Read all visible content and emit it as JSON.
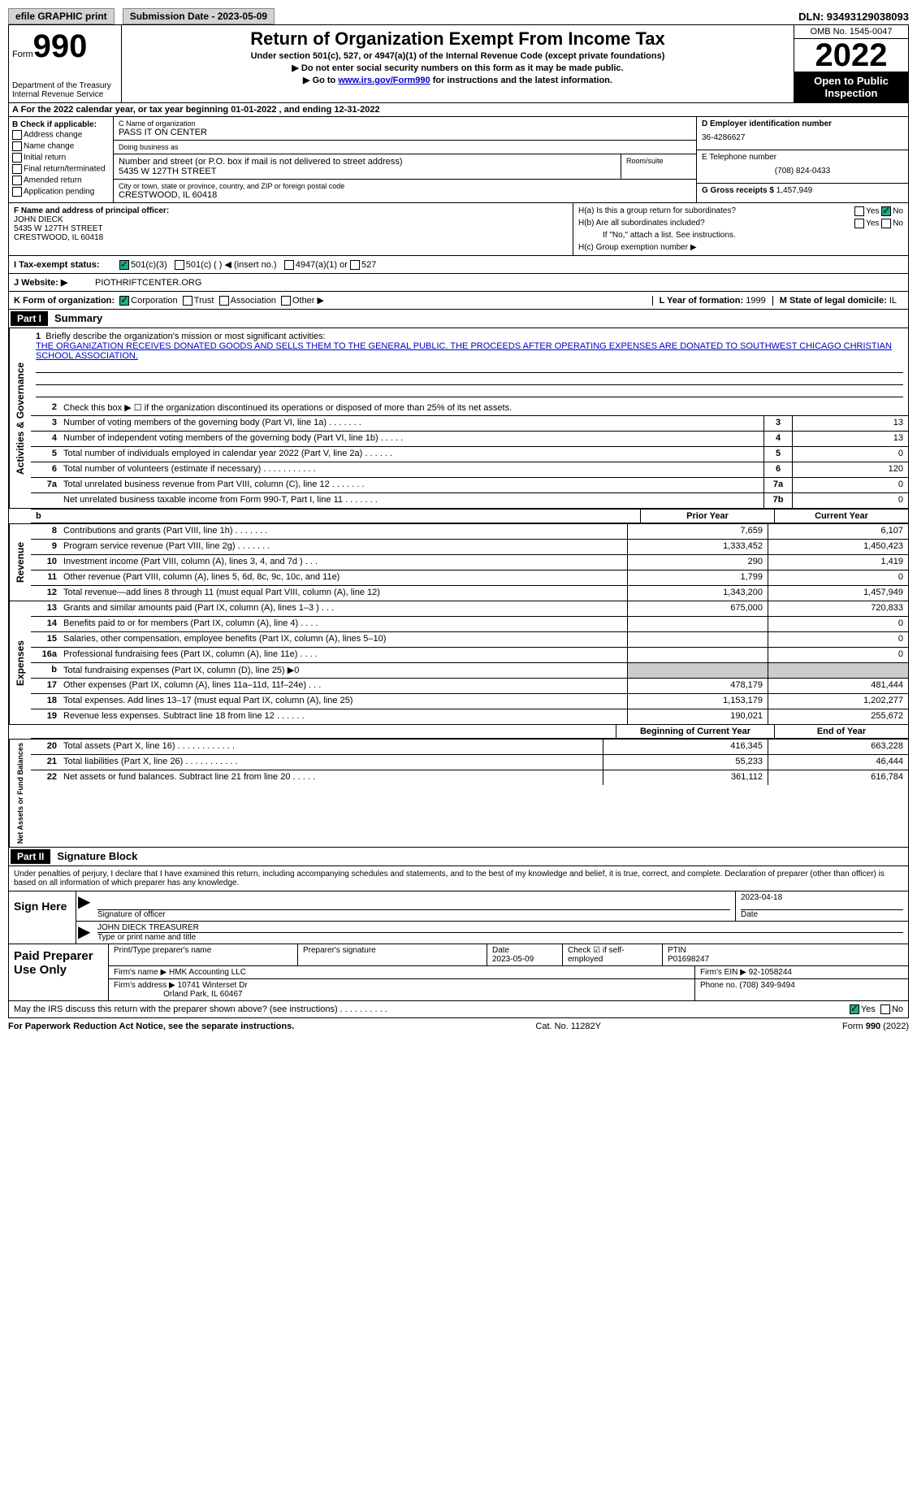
{
  "topbar": {
    "efile": "efile GRAPHIC print",
    "submission": "Submission Date - 2023-05-09",
    "dln": "DLN: 93493129038093"
  },
  "header": {
    "form_label": "Form",
    "form_num": "990",
    "dept": "Department of the Treasury",
    "irs": "Internal Revenue Service",
    "title": "Return of Organization Exempt From Income Tax",
    "sub1": "Under section 501(c), 527, or 4947(a)(1) of the Internal Revenue Code (except private foundations)",
    "sub2": "▶ Do not enter social security numbers on this form as it may be made public.",
    "sub3_pre": "▶ Go to ",
    "sub3_link": "www.irs.gov/Form990",
    "sub3_post": " for instructions and the latest information.",
    "omb": "OMB No. 1545-0047",
    "year": "2022",
    "open": "Open to Public Inspection"
  },
  "row_a": "A For the 2022 calendar year, or tax year beginning 01-01-2022    , and ending 12-31-2022",
  "col_b": {
    "label": "B Check if applicable:",
    "items": [
      "Address change",
      "Name change",
      "Initial return",
      "Final return/terminated",
      "Amended return",
      "Application pending"
    ]
  },
  "col_c": {
    "name_lab": "C Name of organization",
    "name": "PASS IT ON CENTER",
    "dba_lab": "Doing business as",
    "dba": "",
    "street_lab": "Number and street (or P.O. box if mail is not delivered to street address)",
    "room_lab": "Room/suite",
    "street": "5435 W 127TH STREET",
    "city_lab": "City or town, state or province, country, and ZIP or foreign postal code",
    "city": "CRESTWOOD, IL  60418"
  },
  "col_d": {
    "ein_lab": "D Employer identification number",
    "ein": "36-4286627",
    "tel_lab": "E Telephone number",
    "tel": "(708) 824-0433",
    "gross_lab": "G Gross receipts $",
    "gross": "1,457,949"
  },
  "fh": {
    "f_lab": "F Name and address of principal officer:",
    "f_name": "JOHN DIECK",
    "f_addr1": "5435 W 127TH STREET",
    "f_addr2": "CRESTWOOD, IL  60418",
    "ha": "H(a)  Is this a group return for subordinates?",
    "hb": "H(b)  Are all subordinates included?",
    "hb_note": "If \"No,\" attach a list. See instructions.",
    "hc": "H(c)  Group exemption number ▶",
    "yes": "Yes",
    "no": "No"
  },
  "row_i": {
    "label": "I    Tax-exempt status:",
    "o1": "501(c)(3)",
    "o2": "501(c) (  ) ◀ (insert no.)",
    "o3": "4947(a)(1) or",
    "o4": "527"
  },
  "row_j": {
    "label": "J   Website: ▶",
    "val": "PIOTHRIFTCENTER.ORG"
  },
  "row_k": {
    "label": "K Form of organization:",
    "o1": "Corporation",
    "o2": "Trust",
    "o3": "Association",
    "o4": "Other ▶",
    "l_lab": "L Year of formation:",
    "l_val": "1999",
    "m_lab": "M State of legal domicile:",
    "m_val": "IL"
  },
  "part1": {
    "num": "Part I",
    "title": "Summary"
  },
  "summary": {
    "q1": "Briefly describe the organization's mission or most significant activities:",
    "q1_text": "THE ORGANIZATION RECEIVES DONATED GOODS AND SELLS THEM TO THE GENERAL PUBLIC. THE PROCEEDS AFTER OPERATING EXPENSES ARE DONATED TO SOUTHWEST CHICAGO CHRISTIAN SCHOOL ASSOCIATION.",
    "q2": "Check this box ▶ ☐  if the organization discontinued its operations or disposed of more than 25% of its net assets.",
    "rows": [
      {
        "n": "3",
        "t": "Number of voting members of the governing body (Part VI, line 1a)   .    .    .    .    .    .    .",
        "b": "3",
        "v": "13"
      },
      {
        "n": "4",
        "t": "Number of independent voting members of the governing body (Part VI, line 1b)   .    .    .    .    .",
        "b": "4",
        "v": "13"
      },
      {
        "n": "5",
        "t": "Total number of individuals employed in calendar year 2022 (Part V, line 2a)   .    .    .    .    .    .",
        "b": "5",
        "v": "0"
      },
      {
        "n": "6",
        "t": "Total number of volunteers (estimate if necessary)   .    .    .    .    .    .    .    .    .    .    .",
        "b": "6",
        "v": "120"
      },
      {
        "n": "7a",
        "t": "Total unrelated business revenue from Part VIII, column (C), line 12   .    .    .    .    .    .    .",
        "b": "7a",
        "v": "0"
      },
      {
        "n": "",
        "t": "Net unrelated business taxable income from Form 990-T, Part I, line 11   .    .    .    .    .    .    .",
        "b": "7b",
        "v": "0"
      }
    ]
  },
  "prior_hdr": "Prior Year",
  "curr_hdr": "Current Year",
  "revenue": {
    "label": "Revenue",
    "rows": [
      {
        "n": "8",
        "t": "Contributions and grants (Part VIII, line 1h)   .    .    .    .    .    .    .",
        "p": "7,659",
        "c": "6,107"
      },
      {
        "n": "9",
        "t": "Program service revenue (Part VIII, line 2g)   .    .    .    .    .    .    .",
        "p": "1,333,452",
        "c": "1,450,423"
      },
      {
        "n": "10",
        "t": "Investment income (Part VIII, column (A), lines 3, 4, and 7d )   .    .    .",
        "p": "290",
        "c": "1,419"
      },
      {
        "n": "11",
        "t": "Other revenue (Part VIII, column (A), lines 5, 6d, 8c, 9c, 10c, and 11e)",
        "p": "1,799",
        "c": "0"
      },
      {
        "n": "12",
        "t": "Total revenue—add lines 8 through 11 (must equal Part VIII, column (A), line 12)",
        "p": "1,343,200",
        "c": "1,457,949"
      }
    ]
  },
  "expenses": {
    "label": "Expenses",
    "rows": [
      {
        "n": "13",
        "t": "Grants and similar amounts paid (Part IX, column (A), lines 1–3 )   .    .    .",
        "p": "675,000",
        "c": "720,833"
      },
      {
        "n": "14",
        "t": "Benefits paid to or for members (Part IX, column (A), line 4)   .    .    .    .",
        "p": "",
        "c": "0"
      },
      {
        "n": "15",
        "t": "Salaries, other compensation, employee benefits (Part IX, column (A), lines 5–10)",
        "p": "",
        "c": "0"
      },
      {
        "n": "16a",
        "t": "Professional fundraising fees (Part IX, column (A), line 11e)   .    .    .    .",
        "p": "",
        "c": "0"
      },
      {
        "n": "b",
        "t": "Total fundraising expenses (Part IX, column (D), line 25) ▶0",
        "p": "shade",
        "c": "shade"
      },
      {
        "n": "17",
        "t": "Other expenses (Part IX, column (A), lines 11a–11d, 11f–24e)   .    .    .",
        "p": "478,179",
        "c": "481,444"
      },
      {
        "n": "18",
        "t": "Total expenses. Add lines 13–17 (must equal Part IX, column (A), line 25)",
        "p": "1,153,179",
        "c": "1,202,277"
      },
      {
        "n": "19",
        "t": "Revenue less expenses. Subtract line 18 from line 12   .    .    .    .    .    .",
        "p": "190,021",
        "c": "255,672"
      }
    ]
  },
  "netassets": {
    "label": "Net Assets or Fund Balances",
    "hdr_p": "Beginning of Current Year",
    "hdr_c": "End of Year",
    "rows": [
      {
        "n": "20",
        "t": "Total assets (Part X, line 16)   .    .    .    .    .    .    .    .    .    .    .    .",
        "p": "416,345",
        "c": "663,228"
      },
      {
        "n": "21",
        "t": "Total liabilities (Part X, line 26)   .    .    .    .    .    .    .    .    .    .    .",
        "p": "55,233",
        "c": "46,444"
      },
      {
        "n": "22",
        "t": "Net assets or fund balances. Subtract line 21 from line 20   .    .    .    .    .",
        "p": "361,112",
        "c": "616,784"
      }
    ]
  },
  "part2": {
    "num": "Part II",
    "title": "Signature Block"
  },
  "sig": {
    "intro": "Under penalties of perjury, I declare that I have examined this return, including accompanying schedules and statements, and to the best of my knowledge and belief, it is true, correct, and complete. Declaration of preparer (other than officer) is based on all information of which preparer has any knowledge.",
    "sign_here": "Sign Here",
    "sig_officer": "Signature of officer",
    "sig_date": "2023-04-18",
    "date_lab": "Date",
    "name": "JOHN DIECK  TREASURER",
    "name_lab": "Type or print name and title"
  },
  "prep": {
    "label": "Paid Preparer Use Only",
    "r1": {
      "c1_lab": "Print/Type preparer's name",
      "c1": "",
      "c2_lab": "Preparer's signature",
      "c2": "",
      "c3_lab": "Date",
      "c3": "2023-05-09",
      "c4_lab": "Check ☑ if self-employed",
      "c5_lab": "PTIN",
      "c5": "P01698247"
    },
    "r2": {
      "lab": "Firm's name      ▶",
      "val": "HMK Accounting LLC",
      "ein_lab": "Firm's EIN ▶",
      "ein": "92-1058244"
    },
    "r3": {
      "lab": "Firm's address ▶",
      "val1": "10741 Winterset Dr",
      "val2": "Orland Park, IL  60467",
      "ph_lab": "Phone no.",
      "ph": "(708) 349-9494"
    }
  },
  "discuss": {
    "t": "May the IRS discuss this return with the preparer shown above? (see instructions)   .    .    .    .    .    .    .    .    .    .",
    "yes": "Yes",
    "no": "No"
  },
  "footer": {
    "left": "For Paperwork Reduction Act Notice, see the separate instructions.",
    "mid": "Cat. No. 11282Y",
    "right": "Form 990 (2022)"
  }
}
